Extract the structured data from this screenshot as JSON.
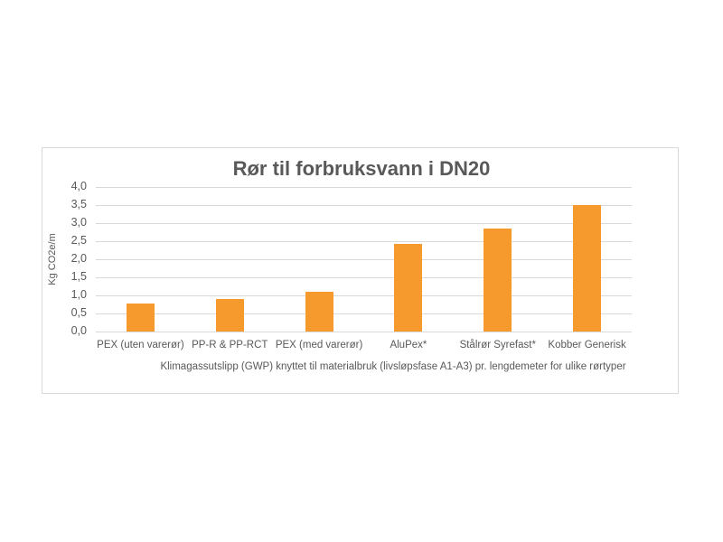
{
  "chart_data": {
    "type": "bar",
    "title": "Rør til forbruksvann i DN20",
    "xlabel": "Klimagassutslipp (GWP) knyttet til materialbruk (livsløpsfase A1-A3) pr. lengdemeter for ulike rørtyper",
    "ylabel": "Kg CO2e/m",
    "categories": [
      "PEX (uten varerør)",
      "PP-R & PP-RCT",
      "PEX (med varerør)",
      "AluPex*",
      "Stålrør Syrefast*",
      "Kobber Generisk"
    ],
    "values": [
      0.77,
      0.91,
      1.11,
      2.42,
      2.86,
      3.5
    ],
    "ylim": [
      0,
      4.0
    ],
    "yticks": [
      "0,0",
      "0,5",
      "1,0",
      "1,5",
      "2,0",
      "2,5",
      "3,0",
      "3,5",
      "4,0"
    ],
    "grid": true,
    "legend": null,
    "bar_color": "#F79A2E"
  }
}
